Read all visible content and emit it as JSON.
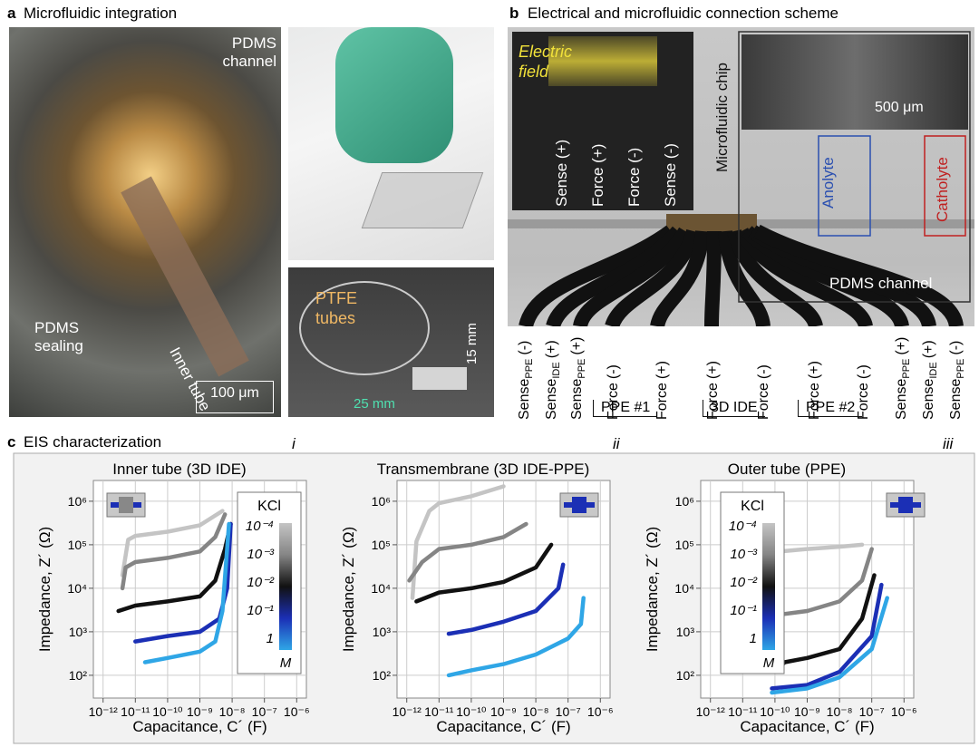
{
  "panel_a": {
    "label": "a",
    "title": "Microfluidic integration",
    "pdms_channel": "PDMS channel",
    "inner_tube": "Inner tube",
    "pdms_sealing": "PDMS sealing",
    "scale_bar": "100 μm",
    "ptfe_tubes": "PTFE tubes",
    "height": "15 mm",
    "width": "25 mm"
  },
  "panel_b": {
    "label": "b",
    "title": "Electrical and microfluidic connection scheme",
    "electric_field": "Electric field",
    "inset_electrodes": [
      "Sense (+)",
      "Force (+)",
      "Force (-)",
      "Sense (-)"
    ],
    "microfluidic_chip": "Microfluidic chip",
    "scale_bar": "500 μm",
    "anolyte": "Anolyte",
    "catholyte": "Catholyte",
    "pdms_channel": "PDMS channel",
    "connections": [
      {
        "main": "Sense",
        "sub": "PPE",
        "sign": "(-)"
      },
      {
        "main": "Sense",
        "sub": "IDE",
        "sign": "(+)"
      },
      {
        "main": "Sense",
        "sub": "PPE",
        "sign": "(+)"
      },
      {
        "main": "Force",
        "sign": "(-)"
      },
      {
        "main": "Force",
        "sign": "(+)"
      },
      {
        "main": "Force",
        "sign": "(+)"
      },
      {
        "main": "Force",
        "sign": "(-)"
      },
      {
        "main": "Force",
        "sign": "(+)"
      },
      {
        "main": "Force",
        "sign": "(-)"
      },
      {
        "main": "Sense",
        "sub": "PPE",
        "sign": "(+)"
      },
      {
        "main": "Sense",
        "sub": "IDE",
        "sign": "(+)"
      },
      {
        "main": "Sense",
        "sub": "PPE",
        "sign": "(-)"
      }
    ],
    "groups": [
      "PPE #1",
      "3D IDE",
      "PPE #2"
    ]
  },
  "panel_c": {
    "label": "c",
    "title": "EIS characterization"
  },
  "chart_data": [
    {
      "type": "line",
      "numeral": "i",
      "title": "Inner tube (3D IDE)",
      "x_label": "Capacitance, C´ (F)",
      "y_label": "Impedance, Z´ (Ω)",
      "log_x": true,
      "log_y": true,
      "grid": true,
      "xlim": [
        5e-13,
        2e-06
      ],
      "ylim": [
        30,
        3000000
      ],
      "xticks": [
        {
          "value": 1e-12,
          "label": "10⁻¹²"
        },
        {
          "value": 1e-11,
          "label": "10⁻¹¹"
        },
        {
          "value": 1e-10,
          "label": "10⁻¹⁰"
        },
        {
          "value": 1e-09,
          "label": "10⁻⁹"
        },
        {
          "value": 1e-08,
          "label": "10⁻⁸"
        },
        {
          "value": 1e-07,
          "label": "10⁻⁷"
        },
        {
          "value": 1e-06,
          "label": "10⁻⁶"
        }
      ],
      "yticks": [
        {
          "value": 100,
          "label": "10²"
        },
        {
          "value": 1000,
          "label": "10³"
        },
        {
          "value": 10000,
          "label": "10⁴"
        },
        {
          "value": 100000,
          "label": "10⁵"
        },
        {
          "value": 1000000,
          "label": "10⁶"
        }
      ],
      "colorbar_title": "KCl",
      "colorbar_unit": "M",
      "series": [
        {
          "name": "10⁻⁴",
          "color": "#c4c4c4",
          "x": [
            4e-12,
            6e-12,
            1e-11,
            1e-10,
            1e-09,
            5e-09
          ],
          "values": [
            20000,
            130000,
            160000,
            200000,
            280000,
            600000
          ]
        },
        {
          "name": "10⁻³",
          "color": "#858585",
          "x": [
            4e-12,
            5e-12,
            1e-11,
            1e-10,
            1e-09,
            3e-09,
            6e-09
          ],
          "values": [
            10000,
            30000,
            40000,
            50000,
            70000,
            150000,
            500000
          ]
        },
        {
          "name": "10⁻²",
          "color": "#111111",
          "x": [
            3e-12,
            1e-11,
            1e-10,
            1e-09,
            3e-09,
            6e-09,
            9e-09
          ],
          "values": [
            3000,
            4000,
            5000,
            6500,
            15000,
            80000,
            300000
          ]
        },
        {
          "name": "10⁻¹",
          "color": "#1b2fb5",
          "x": [
            1e-11,
            1e-10,
            1e-09,
            4e-09,
            7e-09,
            9e-09
          ],
          "values": [
            600,
            800,
            1000,
            2000,
            10000,
            300000
          ]
        },
        {
          "name": "1",
          "color": "#2fa6e6",
          "x": [
            2e-11,
            1e-10,
            1e-09,
            3e-09,
            5e-09,
            8e-09
          ],
          "values": [
            200,
            250,
            350,
            600,
            3000,
            300000
          ]
        }
      ]
    },
    {
      "type": "line",
      "numeral": "ii",
      "title": "Transmembrane (3D IDE-PPE)",
      "x_label": "Capacitance, C´ (F)",
      "y_label": "Impedance, Z´ (Ω)",
      "log_x": true,
      "log_y": true,
      "grid": true,
      "xlim": [
        5e-13,
        2e-06
      ],
      "ylim": [
        30,
        3000000
      ],
      "xticks": [
        {
          "value": 1e-12,
          "label": "10⁻¹²"
        },
        {
          "value": 1e-11,
          "label": "10⁻¹¹"
        },
        {
          "value": 1e-10,
          "label": "10⁻¹⁰"
        },
        {
          "value": 1e-09,
          "label": "10⁻⁹"
        },
        {
          "value": 1e-08,
          "label": "10⁻⁸"
        },
        {
          "value": 1e-07,
          "label": "10⁻⁷"
        },
        {
          "value": 1e-06,
          "label": "10⁻⁶"
        }
      ],
      "yticks": [
        {
          "value": 100,
          "label": "10²"
        },
        {
          "value": 1000,
          "label": "10³"
        },
        {
          "value": 10000,
          "label": "10⁴"
        },
        {
          "value": 100000,
          "label": "10⁵"
        },
        {
          "value": 1000000,
          "label": "10⁶"
        }
      ],
      "series": [
        {
          "color": "#c4c4c4",
          "x": [
            1.5e-12,
            2e-12,
            5e-12,
            1e-11,
            1e-10,
            1e-09
          ],
          "values": [
            6000,
            120000,
            600000,
            900000,
            1300000,
            2200000
          ]
        },
        {
          "color": "#858585",
          "x": [
            1.2e-12,
            3e-12,
            1e-11,
            1e-10,
            1e-09,
            5e-09
          ],
          "values": [
            15000,
            40000,
            80000,
            100000,
            150000,
            300000
          ]
        },
        {
          "color": "#111111",
          "x": [
            2e-12,
            1e-11,
            1e-10,
            1e-09,
            1e-08,
            3e-08
          ],
          "values": [
            5000,
            8000,
            10000,
            14000,
            30000,
            100000
          ]
        },
        {
          "color": "#1b2fb5",
          "x": [
            2e-11,
            1e-10,
            1e-09,
            1e-08,
            5e-08,
            7e-08
          ],
          "values": [
            900,
            1100,
            1700,
            3000,
            10000,
            35000
          ]
        },
        {
          "color": "#2fa6e6",
          "x": [
            2e-11,
            1e-10,
            1e-09,
            1e-08,
            1e-07,
            2.5e-07,
            3e-07
          ],
          "values": [
            100,
            130,
            180,
            300,
            700,
            1500,
            6000
          ]
        }
      ]
    },
    {
      "type": "line",
      "numeral": "iii",
      "title": "Outer tube (PPE)",
      "x_label": "Capacitance, C´ (F)",
      "y_label": "Impedance, Z´ (Ω)",
      "log_x": true,
      "log_y": true,
      "grid": true,
      "xlim": [
        5e-13,
        2e-06
      ],
      "ylim": [
        30,
        3000000
      ],
      "xticks": [
        {
          "value": 1e-12,
          "label": "10⁻¹²"
        },
        {
          "value": 1e-11,
          "label": "10⁻¹¹"
        },
        {
          "value": 1e-10,
          "label": "10⁻¹⁰"
        },
        {
          "value": 1e-09,
          "label": "10⁻⁹"
        },
        {
          "value": 1e-08,
          "label": "10⁻⁸"
        },
        {
          "value": 1e-07,
          "label": "10⁻⁷"
        },
        {
          "value": 1e-06,
          "label": "10⁻⁶"
        }
      ],
      "yticks": [
        {
          "value": 100,
          "label": "10²"
        },
        {
          "value": 1000,
          "label": "10³"
        },
        {
          "value": 10000,
          "label": "10⁴"
        },
        {
          "value": 100000,
          "label": "10⁵"
        },
        {
          "value": 1000000,
          "label": "10⁶"
        }
      ],
      "colorbar_title": "KCl",
      "colorbar_unit": "M",
      "series": [
        {
          "name": "10⁻⁴",
          "color": "#c4c4c4",
          "x": [
            1.2e-10,
            1.5e-10,
            1e-09,
            1e-08,
            5e-08
          ],
          "values": [
            5000,
            70000,
            80000,
            90000,
            100000
          ]
        },
        {
          "name": "10⁻³",
          "color": "#858585",
          "x": [
            1e-10,
            1.5e-10,
            1e-09,
            1e-08,
            5e-08,
            1e-07
          ],
          "values": [
            1000,
            2500,
            3000,
            5000,
            15000,
            80000
          ]
        },
        {
          "name": "10⁻²",
          "color": "#111111",
          "x": [
            1e-10,
            2e-10,
            1e-09,
            1e-08,
            5e-08,
            1.2e-07
          ],
          "values": [
            120,
            200,
            250,
            400,
            2000,
            20000
          ]
        },
        {
          "name": "10⁻¹",
          "color": "#1b2fb5",
          "x": [
            8e-11,
            1e-09,
            1e-08,
            1e-07,
            2e-07
          ],
          "values": [
            50,
            60,
            120,
            800,
            12000
          ]
        },
        {
          "name": "1",
          "color": "#2fa6e6",
          "x": [
            8e-11,
            1e-09,
            1e-08,
            1e-07,
            3e-07
          ],
          "values": [
            40,
            50,
            90,
            400,
            6000
          ]
        }
      ]
    }
  ]
}
